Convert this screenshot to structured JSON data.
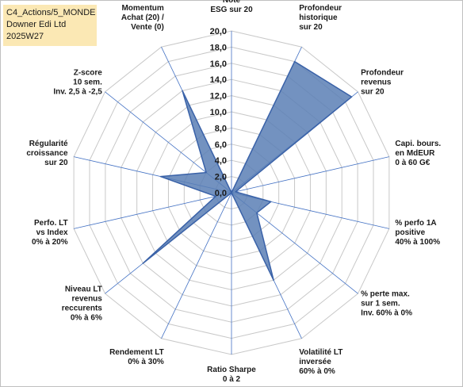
{
  "info_box": {
    "line1": "C4_Actions/5_MONDE",
    "line2": "Downer Edi Ltd",
    "line3": "2025W27"
  },
  "colors": {
    "fill": "#5b7fb5",
    "stroke": "#3a62a8",
    "grid": "#c8c8c8",
    "spoke": "#4472c4",
    "info_bg": "#fbe8b4"
  },
  "chart_data": {
    "type": "radar",
    "title": "",
    "rmin": 0,
    "rmax": 20,
    "ticks": [
      "0,0",
      "2,0",
      "4,0",
      "6,0",
      "8,0",
      "10,0",
      "12,0",
      "14,0",
      "16,0",
      "18,0",
      "20,0"
    ],
    "axes": [
      {
        "label": [
          "Note",
          "ESG sur 20"
        ],
        "value": 0
      },
      {
        "label": [
          "Profondeur",
          "historique",
          "sur 20"
        ],
        "value": 18
      },
      {
        "label": [
          "Profondeur",
          "revenus",
          "sur 20"
        ],
        "value": 19
      },
      {
        "label": [
          "Capi. bours.",
          "en MdEUR",
          "0 à 60 G€"
        ],
        "value": 0.5
      },
      {
        "label": [
          "% perfo 1A",
          "positive",
          "40% à 100%"
        ],
        "value": 5
      },
      {
        "label": [
          "% perte max.",
          "sur 1 sem.",
          "Inv. 60% à 0%"
        ],
        "value": 4
      },
      {
        "label": [
          "Volatilité LT",
          "inversée",
          "60% à 0%"
        ],
        "value": 12
      },
      {
        "label": [
          "Ratio Sharpe",
          "0 à 2"
        ],
        "value": 0
      },
      {
        "label": [
          "Rendement LT",
          "0% à 30%"
        ],
        "value": 0
      },
      {
        "label": [
          "Niveau LT",
          "revenus",
          "reccurents",
          "0% à 6%"
        ],
        "value": 14
      },
      {
        "label": [
          "Perfo. LT",
          "vs Index",
          "0% à 20%"
        ],
        "value": 2
      },
      {
        "label": [
          "Régularité",
          "croissance",
          "sur 20"
        ],
        "value": 9
      },
      {
        "label": [
          "Z-score",
          "10 sem.",
          "Inv. 2,5 à -2,5"
        ],
        "value": 4
      },
      {
        "label": [
          "Momentum",
          "Achat (20) /",
          "Vente (0)"
        ],
        "value": 14
      }
    ]
  }
}
